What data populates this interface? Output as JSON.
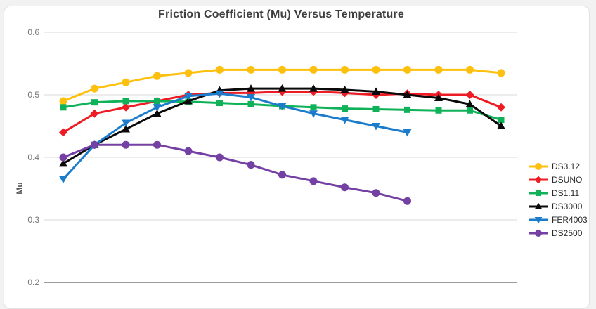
{
  "chart_data": {
    "type": "line",
    "title": "Friction Coefficient (Mu) Versus Temperature",
    "xlabel": "",
    "ylabel": "Mu",
    "ylim": [
      0.2,
      0.6
    ],
    "yticks": [
      0.6,
      0.5,
      0.4,
      0.3,
      0.2
    ],
    "x_labels_visible": false,
    "n_points": 15,
    "grid": true,
    "grid_color": "#d9d9d9",
    "axis_line_color": "#9b9b9b",
    "tick_label_color": "#777777",
    "legend_position": "right",
    "series": [
      {
        "name": "DS3.12",
        "color": "#FEC00E",
        "marker": "circle",
        "values": [
          0.49,
          0.51,
          0.52,
          0.53,
          0.535,
          0.54,
          0.54,
          0.54,
          0.54,
          0.54,
          0.54,
          0.54,
          0.54,
          0.54,
          0.535
        ]
      },
      {
        "name": "DSUNO",
        "color": "#ED1C24",
        "marker": "diamond",
        "values": [
          0.44,
          0.47,
          0.48,
          0.49,
          0.5,
          0.503,
          0.503,
          0.505,
          0.505,
          0.503,
          0.5,
          0.502,
          0.5,
          0.5,
          0.48
        ]
      },
      {
        "name": "DS1.11",
        "color": "#10B259",
        "marker": "square",
        "values": [
          0.48,
          0.488,
          0.49,
          0.49,
          0.489,
          0.487,
          0.485,
          0.482,
          0.48,
          0.478,
          0.477,
          0.476,
          0.475,
          0.475,
          0.46
        ]
      },
      {
        "name": "DS3000",
        "color": "#0A0A0A",
        "marker": "triangle-up",
        "values": [
          0.39,
          0.42,
          0.445,
          0.47,
          0.49,
          0.507,
          0.51,
          0.51,
          0.51,
          0.508,
          0.505,
          0.5,
          0.495,
          0.485,
          0.45
        ]
      },
      {
        "name": "FER4003",
        "color": "#1B7CCC",
        "marker": "triangle-down",
        "values": [
          0.365,
          0.42,
          0.455,
          0.48,
          0.498,
          0.502,
          0.496,
          0.482,
          0.47,
          0.46,
          0.45,
          0.44
        ]
      },
      {
        "name": "DS2500",
        "color": "#7440A4",
        "marker": "circle",
        "values": [
          0.4,
          0.42,
          0.42,
          0.42,
          0.41,
          0.4,
          0.388,
          0.372,
          0.362,
          0.352,
          0.343,
          0.33
        ]
      }
    ]
  }
}
